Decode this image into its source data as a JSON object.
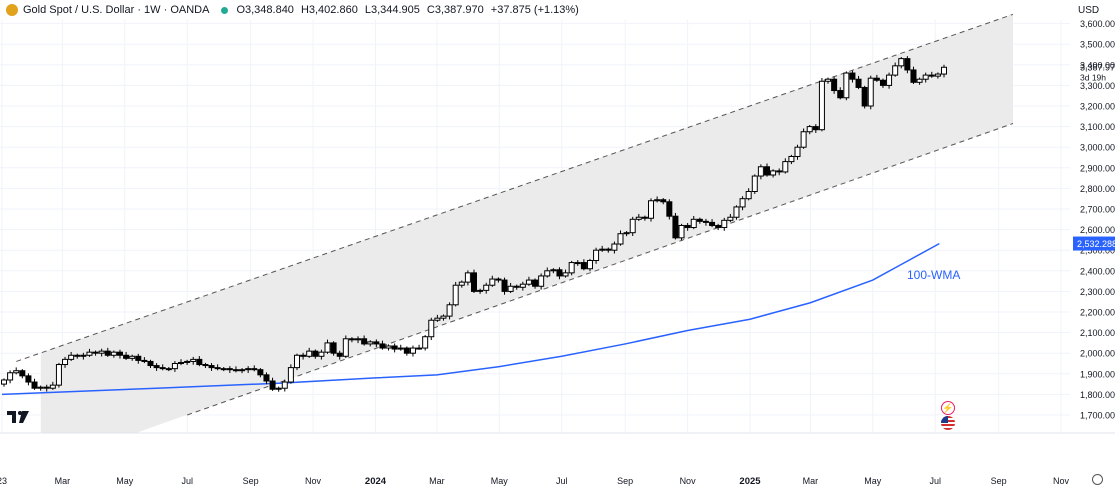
{
  "header": {
    "title": "Gold Spot / U.S. Dollar · 1W · OANDA",
    "open": "O3,348.840",
    "high": "H3,402.860",
    "low": "L3,344.905",
    "close": "C3,387.970",
    "change": "+37.875 (+1.13%)"
  },
  "currency_label": "USD",
  "price_label": "3,387.970",
  "countdown_label": "3d 19h",
  "wma_value_label": "2,532.288",
  "wma_name": "100-WMA",
  "colors": {
    "wma": "#2962ff",
    "channel_fill": "#ebebeb",
    "candle": "#000000",
    "grid": "#f0f3fa"
  },
  "chart_data": {
    "type": "candlestick",
    "timeframe": "1W",
    "y_ticks": [
      1700,
      1800,
      1900,
      2000,
      2100,
      2200,
      2300,
      2400,
      2500,
      2600,
      2700,
      2800,
      2900,
      3000,
      3100,
      3200,
      3300,
      3400,
      3500,
      3600
    ],
    "y_tick_labels": [
      "1,700.000",
      "1,800.000",
      "1,900.000",
      "2,000.000",
      "2,100.000",
      "2,200.000",
      "2,300.000",
      "2,400.000",
      "2,500.000",
      "2,600.000",
      "2,700.000",
      "2,800.000",
      "2,900.000",
      "3,000.000",
      "3,100.000",
      "3,200.000",
      "3,300.000",
      "3,400.000",
      "3,500.000",
      "3,600.000"
    ],
    "ylim": [
      1620,
      3645
    ],
    "x_labels": [
      {
        "label": "23",
        "date": "2023-01-01"
      },
      {
        "label": "Mar",
        "date": "2023-03-01"
      },
      {
        "label": "May",
        "date": "2023-05-01"
      },
      {
        "label": "Jul",
        "date": "2023-07-01"
      },
      {
        "label": "Sep",
        "date": "2023-09-01"
      },
      {
        "label": "Nov",
        "date": "2023-11-01"
      },
      {
        "label": "2024",
        "date": "2024-01-01"
      },
      {
        "label": "Mar",
        "date": "2024-03-01"
      },
      {
        "label": "May",
        "date": "2024-05-01"
      },
      {
        "label": "Jul",
        "date": "2024-07-01"
      },
      {
        "label": "Sep",
        "date": "2024-09-01"
      },
      {
        "label": "Nov",
        "date": "2024-11-01"
      },
      {
        "label": "2025",
        "date": "2025-01-01"
      },
      {
        "label": "Mar",
        "date": "2025-03-01"
      },
      {
        "label": "May",
        "date": "2025-05-01"
      },
      {
        "label": "Jul",
        "date": "2025-07-01"
      },
      {
        "label": "Sep",
        "date": "2025-09-01"
      },
      {
        "label": "Nov",
        "date": "2025-11-01"
      }
    ],
    "channel": {
      "upper": [
        {
          "date": "2023-01-15",
          "price": 1960
        },
        {
          "date": "2025-09-15",
          "price": 3645
        }
      ],
      "lower": [
        {
          "date": "2023-07-01",
          "price": 1700
        },
        {
          "date": "2025-09-15",
          "price": 3115
        }
      ],
      "shade_start": "2023-02-08",
      "shade_end": "2025-09-15"
    },
    "wma": [
      {
        "date": "2023-01-01",
        "value": 1800
      },
      {
        "date": "2023-06-01",
        "value": 1830
      },
      {
        "date": "2023-10-01",
        "value": 1855
      },
      {
        "date": "2024-01-01",
        "value": 1880
      },
      {
        "date": "2024-03-01",
        "value": 1895
      },
      {
        "date": "2024-05-01",
        "value": 1935
      },
      {
        "date": "2024-07-01",
        "value": 1985
      },
      {
        "date": "2024-09-01",
        "value": 2045
      },
      {
        "date": "2024-11-01",
        "value": 2110
      },
      {
        "date": "2025-01-01",
        "value": 2165
      },
      {
        "date": "2025-03-01",
        "value": 2245
      },
      {
        "date": "2025-05-01",
        "value": 2355
      },
      {
        "date": "2025-07-05",
        "value": 2532
      }
    ],
    "candles_close": [
      1870,
      1905,
      1915,
      1890,
      1860,
      1830,
      1835,
      1830,
      1845,
      1945,
      1970,
      1990,
      1985,
      1990,
      2005,
      2000,
      2010,
      1990,
      2005,
      1990,
      1975,
      1985,
      1965,
      1960,
      1940,
      1930,
      1925,
      1925,
      1950,
      1955,
      1960,
      1970,
      1945,
      1940,
      1930,
      1925,
      1925,
      1920,
      1915,
      1920,
      1925,
      1920,
      1895,
      1865,
      1825,
      1830,
      1860,
      1930,
      1990,
      1985,
      2010,
      1985,
      2005,
      2050,
      2000,
      1985,
      2070,
      2065,
      2070,
      2045,
      2055,
      2045,
      2025,
      2035,
      2020,
      2025,
      2000,
      2025,
      2025,
      2080,
      2160,
      2170,
      2180,
      2235,
      2330,
      2345,
      2390,
      2300,
      2305,
      2330,
      2360,
      2355,
      2300,
      2325,
      2320,
      2335,
      2355,
      2325,
      2375,
      2400,
      2405,
      2375,
      2390,
      2440,
      2440,
      2410,
      2450,
      2500,
      2505,
      2500,
      2530,
      2580,
      2585,
      2650,
      2660,
      2655,
      2740,
      2745,
      2735,
      2665,
      2560,
      2620,
      2610,
      2650,
      2640,
      2635,
      2620,
      2610,
      2645,
      2660,
      2710,
      2750,
      2785,
      2860,
      2905,
      2865,
      2885,
      2880,
      2930,
      2955,
      3000,
      3075,
      3100,
      3085,
      3320,
      3330,
      3275,
      3240,
      3360,
      3330,
      3290,
      3200,
      3335,
      3325,
      3300,
      3350,
      3395,
      3430,
      3375,
      3315,
      3330,
      3350,
      3345,
      3355,
      3388
    ]
  }
}
